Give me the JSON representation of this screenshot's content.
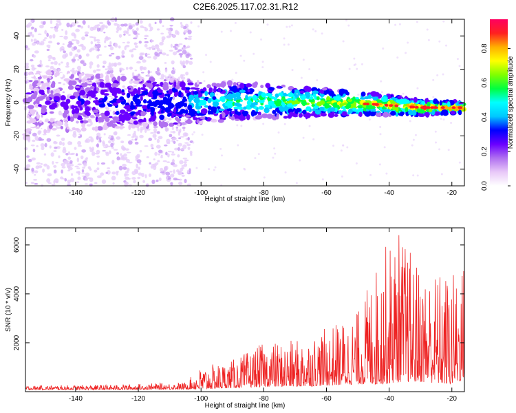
{
  "title": "C2E6.2025.117.02.31.R12",
  "chart_data": [
    {
      "type": "heatmap",
      "xlabel": "Height of straight line (km)",
      "ylabel": "Frequency (Hz)",
      "xlim": [
        -156,
        -16
      ],
      "ylim": [
        -50,
        50
      ],
      "x_ticks": [
        -140,
        -120,
        -100,
        -80,
        -60,
        -40,
        -20
      ],
      "y_ticks": [
        -40,
        -20,
        0,
        20,
        40
      ],
      "colorbar": {
        "label": "Normalized spectral amplitude",
        "range": [
          0,
          0.97
        ],
        "ticks": [
          0.0,
          0.2,
          0.4,
          0.6,
          0.8
        ],
        "tick_labels": [
          "0.0",
          "0.2",
          "0.4",
          "0.6",
          "0.8"
        ],
        "colormap": [
          "#ffffff",
          "#e8c8f8",
          "#b070f0",
          "#6a00ff",
          "#0000ff",
          "#00c8ff",
          "#00ffff",
          "#00ff40",
          "#80ff00",
          "#ffff00",
          "#ffb000",
          "#ff2020",
          "#ff0060"
        ]
      },
      "band_center_hz": [
        {
          "x": -155,
          "y": 1
        },
        {
          "x": -110,
          "y": 0
        },
        {
          "x": -100,
          "y": 0
        },
        {
          "x": -80,
          "y": 1
        },
        {
          "x": -60,
          "y": 0
        },
        {
          "x": -45,
          "y": -1
        },
        {
          "x": -30,
          "y": -3
        },
        {
          "x": -17,
          "y": -3
        }
      ],
      "noise_region": {
        "x_from": -156,
        "x_to": -103,
        "freq_spread": [
          -50,
          50
        ]
      },
      "grid": false
    },
    {
      "type": "line",
      "xlabel": "Height of straight line (km)",
      "ylabel": "SNR (10 * v/v)",
      "xlim": [
        -156,
        -16
      ],
      "ylim": [
        0,
        6700
      ],
      "x_ticks": [
        -140,
        -120,
        -100,
        -80,
        -60,
        -40,
        -20
      ],
      "y_ticks": [
        2000,
        4000,
        6000
      ],
      "color": "#ee2222",
      "envelope": [
        {
          "x": -156,
          "low": 80,
          "high": 250
        },
        {
          "x": -130,
          "low": 80,
          "high": 280
        },
        {
          "x": -105,
          "low": 100,
          "high": 380
        },
        {
          "x": -100,
          "low": 100,
          "high": 1000
        },
        {
          "x": -90,
          "low": 150,
          "high": 1300
        },
        {
          "x": -80,
          "low": 200,
          "high": 2000
        },
        {
          "x": -70,
          "low": 200,
          "high": 2100
        },
        {
          "x": -60,
          "low": 250,
          "high": 2600
        },
        {
          "x": -50,
          "low": 300,
          "high": 3300
        },
        {
          "x": -42,
          "low": 300,
          "high": 5900
        },
        {
          "x": -37,
          "low": 400,
          "high": 6700
        },
        {
          "x": -30,
          "low": 400,
          "high": 5100
        },
        {
          "x": -20,
          "low": 300,
          "high": 4900
        },
        {
          "x": -16,
          "low": 500,
          "high": 5400
        }
      ],
      "grid": false
    }
  ]
}
